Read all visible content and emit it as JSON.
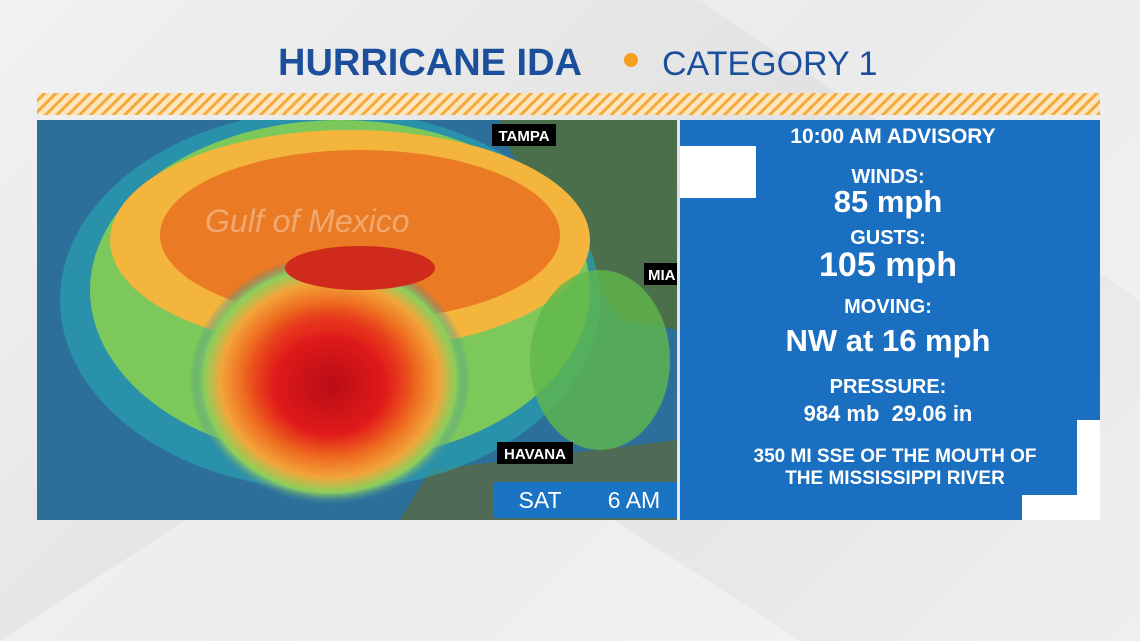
{
  "header": {
    "title": "HURRICANE IDA",
    "category": "CATEGORY 1"
  },
  "map": {
    "labels": [
      "TAMPA",
      "MIA",
      "HAVANA"
    ],
    "water_label": "Gulf of Mexico",
    "day": "SAT",
    "time": "6 AM"
  },
  "panel": {
    "advisory": "10:00 AM ADVISORY",
    "items": [
      {
        "label": "WINDS:",
        "value": "85 mph"
      },
      {
        "label": "GUSTS:",
        "value": "105 mph"
      },
      {
        "label": "MOVING:",
        "value": "NW at 16 mph"
      },
      {
        "label": "PRESSURE:",
        "value": "984 mb  29.06 in"
      }
    ],
    "location": [
      "350 MI SSE OF THE MOUTH OF",
      "THE MISSISSIPPI RIVER"
    ]
  }
}
